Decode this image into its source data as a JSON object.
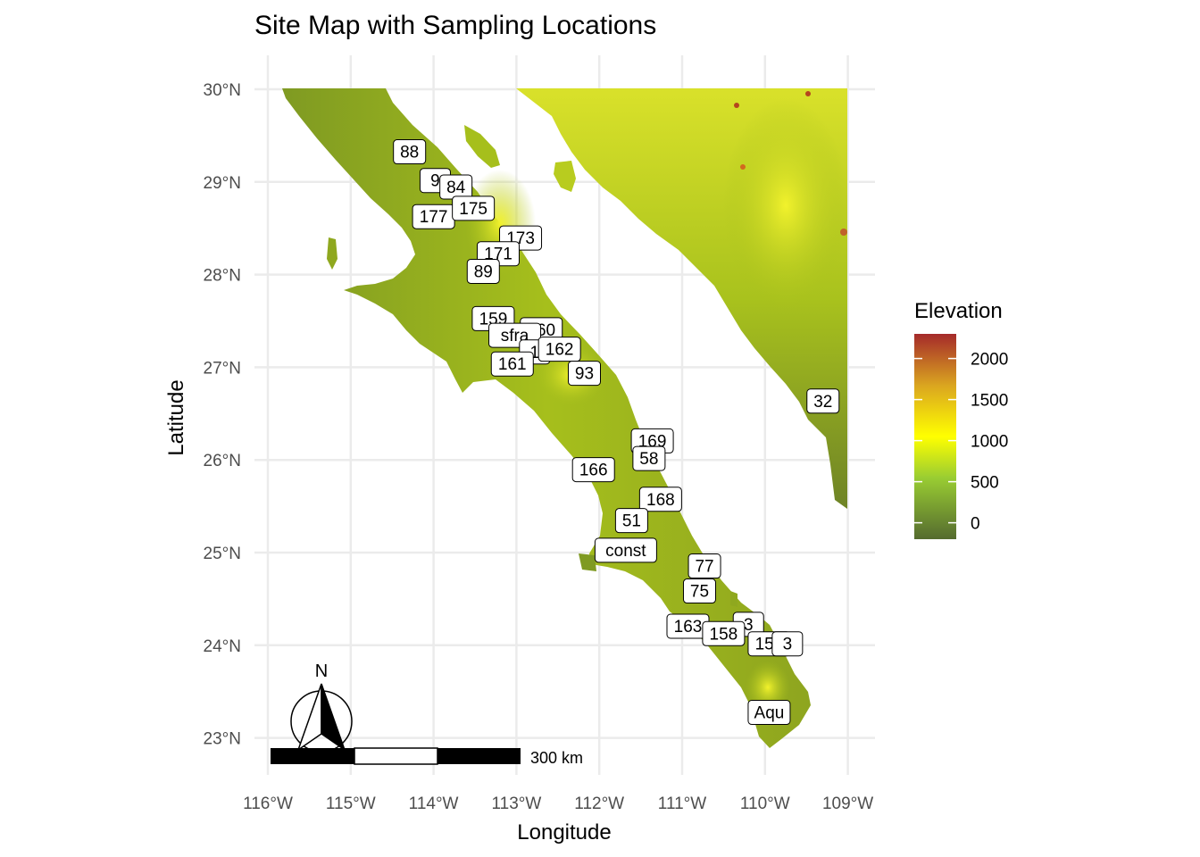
{
  "title": "Site Map with Sampling Locations",
  "x_axis_label": "Longitude",
  "y_axis_label": "Latitude",
  "x_ticks": [
    {
      "lon": -116,
      "label": "116°W"
    },
    {
      "lon": -115,
      "label": "115°W"
    },
    {
      "lon": -114,
      "label": "114°W"
    },
    {
      "lon": -113,
      "label": "113°W"
    },
    {
      "lon": -112,
      "label": "112°W"
    },
    {
      "lon": -111,
      "label": "111°W"
    },
    {
      "lon": -110,
      "label": "110°W"
    },
    {
      "lon": -109,
      "label": "109°W"
    }
  ],
  "y_ticks": [
    {
      "lat": 30,
      "label": "30°N"
    },
    {
      "lat": 29,
      "label": "29°N"
    },
    {
      "lat": 28,
      "label": "28°N"
    },
    {
      "lat": 27,
      "label": "27°N"
    },
    {
      "lat": 26,
      "label": "26°N"
    },
    {
      "lat": 25,
      "label": "25°N"
    },
    {
      "lat": 24,
      "label": "24°N"
    },
    {
      "lat": 23,
      "label": "23°N"
    }
  ],
  "legend": {
    "title": "Elevation",
    "breaks": [
      {
        "value": 2000,
        "label": "2000"
      },
      {
        "value": 1500,
        "label": "1500"
      },
      {
        "value": 1000,
        "label": "1000"
      },
      {
        "value": 500,
        "label": "500"
      },
      {
        "value": 0,
        "label": "0"
      }
    ],
    "range": [
      -200,
      2300
    ],
    "colors": [
      "#556b2f",
      "#9acd32",
      "#ffff00",
      "#daa520",
      "#a52a2a"
    ]
  },
  "north_arrow_label": "N",
  "scale_bar_label": "300 km",
  "colors": {
    "land_low": "#6b7f2a",
    "land_mid": "#a8c21d",
    "land_high": "#e8e82a",
    "peak": "#b5651d",
    "grid": "#ebebeb"
  },
  "sites": [
    {
      "label": "88",
      "lon": -114.29,
      "lat": 29.33
    },
    {
      "label": "9",
      "lon": -113.98,
      "lat": 29.02
    },
    {
      "label": "84",
      "lon": -113.73,
      "lat": 28.95
    },
    {
      "label": "177",
      "lon": -114.0,
      "lat": 28.63
    },
    {
      "label": "175",
      "lon": -113.52,
      "lat": 28.72
    },
    {
      "label": "173",
      "lon": -112.95,
      "lat": 28.4
    },
    {
      "label": "171",
      "lon": -113.22,
      "lat": 28.23
    },
    {
      "label": "89",
      "lon": -113.4,
      "lat": 28.04
    },
    {
      "label": "159",
      "lon": -113.28,
      "lat": 27.53
    },
    {
      "label": "160",
      "lon": -112.7,
      "lat": 27.41
    },
    {
      "label": "sfra",
      "lon": -113.02,
      "lat": 27.35
    },
    {
      "label": "1",
      "lon": -112.78,
      "lat": 27.17
    },
    {
      "label": "162",
      "lon": -112.48,
      "lat": 27.2
    },
    {
      "label": "161",
      "lon": -113.05,
      "lat": 27.04
    },
    {
      "label": "93",
      "lon": -112.18,
      "lat": 26.94
    },
    {
      "label": "169",
      "lon": -111.36,
      "lat": 26.21
    },
    {
      "label": "58",
      "lon": -111.4,
      "lat": 26.02
    },
    {
      "label": "166",
      "lon": -112.07,
      "lat": 25.9
    },
    {
      "label": "168",
      "lon": -111.26,
      "lat": 25.58
    },
    {
      "label": "51",
      "lon": -111.61,
      "lat": 25.35
    },
    {
      "label": "const",
      "lon": -111.68,
      "lat": 25.03
    },
    {
      "label": "77",
      "lon": -110.73,
      "lat": 24.86
    },
    {
      "label": "75",
      "lon": -110.79,
      "lat": 24.59
    },
    {
      "label": "163",
      "lon": -110.93,
      "lat": 24.21
    },
    {
      "label": "3",
      "lon": -110.2,
      "lat": 24.23
    },
    {
      "label": "158",
      "lon": -110.5,
      "lat": 24.13
    },
    {
      "label": "157",
      "lon": -109.95,
      "lat": 24.02
    },
    {
      "label": "3",
      "lon": -109.73,
      "lat": 24.02
    },
    {
      "label": "Aqu",
      "lon": -109.95,
      "lat": 23.28
    },
    {
      "label": "32",
      "lon": -109.3,
      "lat": 26.64
    }
  ]
}
